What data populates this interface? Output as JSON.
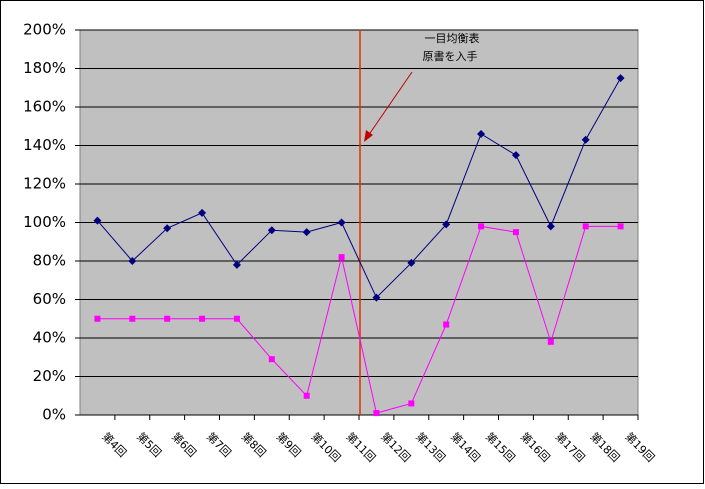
{
  "chart_data": {
    "type": "line",
    "categories": [
      "第4回",
      "第5回",
      "第6回",
      "第7回",
      "第8回",
      "第9回",
      "第10回",
      "第11回",
      "第12回",
      "第13回",
      "第14回",
      "第15回",
      "第16回",
      "第17回",
      "第18回",
      "第19回"
    ],
    "series": [
      {
        "color": "#000080",
        "marker": "diamond",
        "values": [
          101,
          80,
          97,
          105,
          78,
          96,
          95,
          100,
          61,
          79,
          99,
          146,
          135,
          98,
          143,
          175
        ]
      },
      {
        "color": "#ff00ff",
        "marker": "square",
        "values": [
          50,
          50,
          50,
          50,
          50,
          29,
          10,
          82,
          1,
          6,
          47,
          98,
          95,
          38,
          98,
          98
        ]
      }
    ],
    "ylim": [
      0,
      200
    ],
    "yticks": [
      {
        "value": 0,
        "label": "0%"
      },
      {
        "value": 20,
        "label": "20%"
      },
      {
        "value": 40,
        "label": "40%"
      },
      {
        "value": 60,
        "label": "60%"
      },
      {
        "value": 80,
        "label": "80%"
      },
      {
        "value": 100,
        "label": "100%"
      },
      {
        "value": 120,
        "label": "120%"
      },
      {
        "value": 140,
        "label": "140%"
      },
      {
        "value": 160,
        "label": "160%"
      },
      {
        "value": 180,
        "label": "180%"
      },
      {
        "value": 200,
        "label": "200%"
      }
    ],
    "grid": true,
    "annotation": [
      "一目均衡表",
      "原書を入手"
    ]
  }
}
